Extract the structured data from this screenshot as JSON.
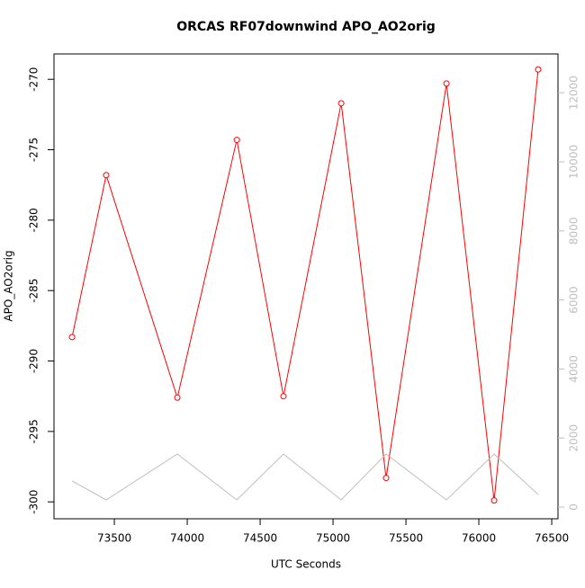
{
  "chart_data": {
    "type": "line",
    "title": "ORCAS RF07downwind APO_AO2orig",
    "xlabel": "UTC Seconds",
    "ylabel": "APO_AO2orig",
    "x": [
      73210,
      73444,
      73932,
      74340,
      74660,
      75056,
      75364,
      75778,
      76105,
      76407
    ],
    "series": [
      {
        "color": "#ff0000",
        "markers": true,
        "values": [
          -288.3,
          -276.8,
          -292.6,
          -274.3,
          -292.5,
          -271.7,
          -298.3,
          -270.3,
          -299.9,
          -269.3
        ]
      },
      {
        "color": "#bebebe",
        "axis": "y2",
        "markers": false,
        "values": [
          755,
          208,
          1536,
          208,
          1536,
          208,
          1536,
          208,
          1536,
          365
        ]
      }
    ],
    "xlim": [
      73086,
      76543
    ],
    "xticks": [
      73500,
      74000,
      74500,
      75000,
      75500,
      76000,
      76500
    ],
    "ylim": [
      -301.2,
      -268.2
    ],
    "yticks": [
      -270,
      -275,
      -280,
      -285,
      -290,
      -295,
      -300
    ],
    "y2lim": [
      -339,
      13125
    ],
    "y2ticks": [
      0,
      2000,
      4000,
      6000,
      8000,
      10000,
      12000
    ],
    "y2color": "#bebebe"
  }
}
